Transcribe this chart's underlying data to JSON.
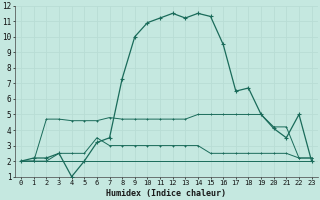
{
  "xlabel": "Humidex (Indice chaleur)",
  "xlim": [
    -0.5,
    23.5
  ],
  "ylim": [
    1,
    12
  ],
  "xticks": [
    0,
    1,
    2,
    3,
    4,
    5,
    6,
    7,
    8,
    9,
    10,
    11,
    12,
    13,
    14,
    15,
    16,
    17,
    18,
    19,
    20,
    21,
    22,
    23
  ],
  "yticks": [
    1,
    2,
    3,
    4,
    5,
    6,
    7,
    8,
    9,
    10,
    11,
    12
  ],
  "bg_color": "#c5e8e0",
  "line_color": "#1a6b5a",
  "grid_color": "#b8ddd5",
  "line1_x": [
    0,
    1,
    2,
    3,
    4,
    5,
    6,
    7,
    8,
    9,
    10,
    11,
    12,
    13,
    14,
    15,
    16,
    17,
    18,
    19,
    20,
    21,
    22,
    23
  ],
  "line1_y": [
    2.0,
    2.2,
    2.2,
    2.5,
    1.0,
    2.0,
    3.2,
    3.5,
    7.3,
    10.0,
    10.9,
    11.2,
    11.5,
    11.2,
    11.5,
    11.3,
    9.5,
    6.5,
    6.7,
    5.0,
    4.1,
    3.5,
    5.0,
    2.0
  ],
  "line2_x": [
    0,
    1,
    2,
    3,
    4,
    5,
    6,
    7,
    8,
    9,
    10,
    11,
    12,
    13,
    14,
    15,
    16,
    17,
    18,
    19,
    20,
    21,
    22,
    23
  ],
  "line2_y": [
    2.0,
    2.0,
    4.7,
    4.7,
    4.6,
    4.6,
    4.6,
    4.8,
    4.7,
    4.7,
    4.7,
    4.7,
    4.7,
    4.7,
    5.0,
    5.0,
    5.0,
    5.0,
    5.0,
    5.0,
    4.2,
    4.2,
    2.2,
    2.2
  ],
  "line3_x": [
    0,
    1,
    2,
    3,
    4,
    5,
    6,
    7,
    8,
    9,
    10,
    11,
    12,
    13,
    14,
    15,
    16,
    17,
    18,
    19,
    20,
    21,
    22,
    23
  ],
  "line3_y": [
    2.0,
    2.0,
    2.0,
    2.5,
    2.5,
    2.5,
    3.5,
    3.0,
    3.0,
    3.0,
    3.0,
    3.0,
    3.0,
    3.0,
    3.0,
    2.5,
    2.5,
    2.5,
    2.5,
    2.5,
    2.5,
    2.5,
    2.2,
    2.2
  ],
  "line4_x": [
    0,
    1,
    2,
    3,
    4,
    5,
    6,
    7,
    8,
    9,
    10,
    11,
    12,
    13,
    14,
    15,
    16,
    17,
    18,
    19,
    20,
    21,
    22,
    23
  ],
  "line4_y": [
    2.0,
    2.0,
    2.0,
    2.0,
    2.0,
    2.0,
    2.0,
    2.0,
    2.0,
    2.0,
    2.0,
    2.0,
    2.0,
    2.0,
    2.0,
    2.0,
    2.0,
    2.0,
    2.0,
    2.0,
    2.0,
    2.0,
    2.0,
    2.0
  ]
}
